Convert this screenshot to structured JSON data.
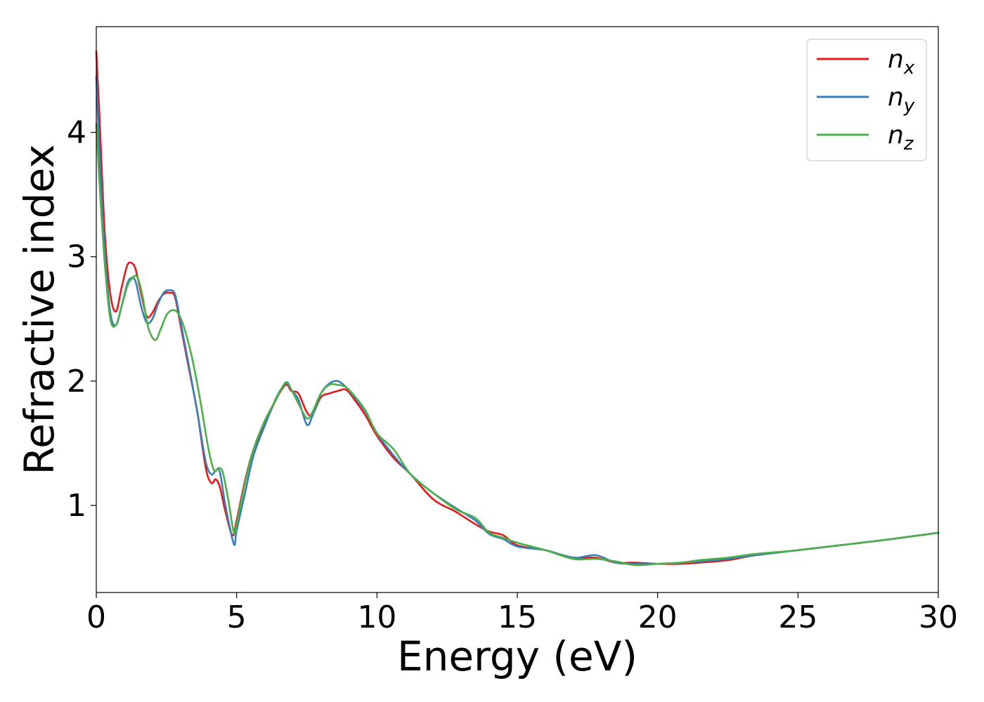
{
  "chart_data": {
    "type": "line",
    "title": "",
    "xlabel": "Energy (eV)",
    "ylabel": "Refractive index",
    "xlim": [
      0,
      30
    ],
    "ylim": [
      0.3,
      4.85
    ],
    "xticks": [
      0,
      5,
      10,
      15,
      20,
      25,
      30
    ],
    "yticks": [
      1,
      2,
      3,
      4
    ],
    "grid": false,
    "legend_position": "top-right",
    "series": [
      {
        "name": "n",
        "subscript": "x",
        "color": "#e41a1c",
        "x": [
          0,
          0.1,
          0.3,
          0.5,
          0.7,
          0.9,
          1.1,
          1.25,
          1.4,
          1.6,
          1.8,
          2.0,
          2.2,
          2.4,
          2.6,
          2.8,
          3.0,
          3.3,
          3.6,
          3.9,
          4.1,
          4.25,
          4.4,
          4.6,
          4.85,
          5.0,
          5.3,
          5.6,
          6.0,
          6.4,
          6.75,
          6.95,
          7.2,
          7.5,
          7.7,
          8.0,
          8.3,
          8.6,
          8.9,
          9.2,
          9.6,
          10.0,
          10.6,
          11.2,
          12.0,
          12.8,
          13.5,
          14.0,
          14.5,
          15.0,
          16.0,
          17.0,
          17.8,
          18.5,
          19.2,
          20.0,
          20.8,
          21.5,
          22.5,
          23.5,
          25.0,
          26.5,
          28.0,
          30.0
        ],
        "y": [
          4.65,
          4.2,
          3.2,
          2.7,
          2.56,
          2.75,
          2.93,
          2.95,
          2.9,
          2.7,
          2.52,
          2.55,
          2.64,
          2.7,
          2.71,
          2.68,
          2.45,
          2.1,
          1.75,
          1.3,
          1.18,
          1.21,
          1.15,
          0.95,
          0.76,
          0.88,
          1.2,
          1.45,
          1.65,
          1.85,
          1.97,
          1.92,
          1.9,
          1.75,
          1.73,
          1.87,
          1.9,
          1.92,
          1.93,
          1.85,
          1.72,
          1.56,
          1.38,
          1.25,
          1.05,
          0.95,
          0.85,
          0.79,
          0.76,
          0.68,
          0.64,
          0.58,
          0.58,
          0.54,
          0.54,
          0.53,
          0.53,
          0.54,
          0.56,
          0.6,
          0.64,
          0.68,
          0.72,
          0.78
        ]
      },
      {
        "name": "n",
        "subscript": "y",
        "color": "#377eb8",
        "x": [
          0,
          0.1,
          0.3,
          0.5,
          0.7,
          0.9,
          1.1,
          1.25,
          1.4,
          1.6,
          1.8,
          2.0,
          2.2,
          2.4,
          2.6,
          2.8,
          3.0,
          3.3,
          3.6,
          3.9,
          4.1,
          4.25,
          4.4,
          4.6,
          4.9,
          5.0,
          5.3,
          5.6,
          6.0,
          6.4,
          6.75,
          6.95,
          7.2,
          7.5,
          7.7,
          8.0,
          8.3,
          8.6,
          8.9,
          9.2,
          9.6,
          10.0,
          10.6,
          11.2,
          12.0,
          12.8,
          13.5,
          14.0,
          14.5,
          15.0,
          16.0,
          17.0,
          17.8,
          18.5,
          19.2,
          20.0,
          20.8,
          21.5,
          22.5,
          23.5,
          25.0,
          26.5,
          28.0,
          30.0
        ],
        "y": [
          4.45,
          3.9,
          3.05,
          2.55,
          2.45,
          2.6,
          2.78,
          2.83,
          2.8,
          2.6,
          2.47,
          2.5,
          2.62,
          2.71,
          2.73,
          2.7,
          2.48,
          2.12,
          1.75,
          1.35,
          1.25,
          1.28,
          1.27,
          1.0,
          0.69,
          0.8,
          1.1,
          1.4,
          1.64,
          1.86,
          1.98,
          1.93,
          1.85,
          1.65,
          1.72,
          1.9,
          1.98,
          2.0,
          1.95,
          1.87,
          1.75,
          1.58,
          1.4,
          1.25,
          1.1,
          0.98,
          0.88,
          0.77,
          0.73,
          0.67,
          0.64,
          0.58,
          0.6,
          0.54,
          0.53,
          0.53,
          0.54,
          0.55,
          0.57,
          0.6,
          0.64,
          0.68,
          0.72,
          0.78
        ]
      },
      {
        "name": "n",
        "subscript": "z",
        "color": "#4daf4a",
        "x": [
          0,
          0.1,
          0.3,
          0.5,
          0.7,
          0.9,
          1.1,
          1.25,
          1.45,
          1.65,
          1.85,
          2.1,
          2.3,
          2.5,
          2.7,
          2.9,
          3.1,
          3.4,
          3.7,
          4.0,
          4.2,
          4.35,
          4.5,
          4.7,
          4.9,
          5.0,
          5.3,
          5.6,
          6.0,
          6.4,
          6.75,
          6.95,
          7.2,
          7.5,
          7.7,
          8.0,
          8.3,
          8.6,
          8.9,
          9.2,
          9.6,
          10.0,
          10.6,
          11.2,
          12.0,
          12.8,
          13.5,
          14.0,
          14.5,
          15.0,
          16.0,
          17.0,
          17.8,
          18.5,
          19.2,
          20.0,
          20.8,
          21.5,
          22.5,
          23.5,
          25.0,
          26.5,
          28.0,
          30.0
        ],
        "y": [
          4.07,
          3.65,
          2.95,
          2.5,
          2.45,
          2.6,
          2.76,
          2.82,
          2.84,
          2.68,
          2.43,
          2.33,
          2.42,
          2.53,
          2.57,
          2.55,
          2.45,
          2.2,
          1.85,
          1.45,
          1.28,
          1.3,
          1.27,
          1.05,
          0.78,
          0.85,
          1.18,
          1.45,
          1.68,
          1.85,
          1.99,
          1.93,
          1.82,
          1.7,
          1.75,
          1.9,
          1.97,
          1.97,
          1.95,
          1.88,
          1.76,
          1.58,
          1.45,
          1.25,
          1.1,
          0.97,
          0.9,
          0.78,
          0.74,
          0.7,
          0.64,
          0.57,
          0.57,
          0.55,
          0.52,
          0.53,
          0.54,
          0.56,
          0.58,
          0.61,
          0.64,
          0.68,
          0.72,
          0.78
        ]
      }
    ]
  }
}
